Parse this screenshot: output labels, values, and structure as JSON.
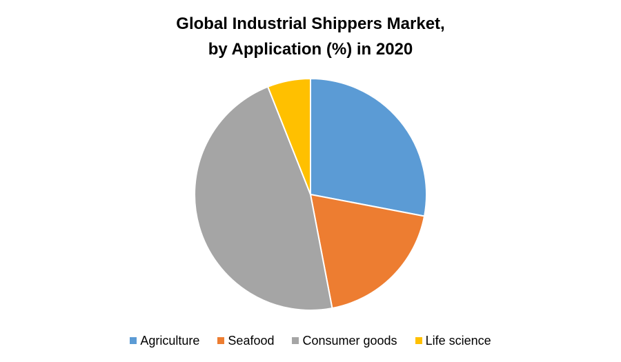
{
  "chart_data": {
    "type": "pie",
    "title_lines": [
      "Global Industrial Shippers Market,",
      "by Application (%) in 2020"
    ],
    "categories": [
      "Agriculture",
      "Seafood",
      "Consumer goods",
      "Life science"
    ],
    "values": [
      28,
      19,
      47,
      6
    ],
    "colors": [
      "#5B9BD5",
      "#ED7D31",
      "#A5A5A5",
      "#FFC000"
    ],
    "legend": "bottom",
    "start_angle": "12 o'clock",
    "direction": "clockwise"
  }
}
